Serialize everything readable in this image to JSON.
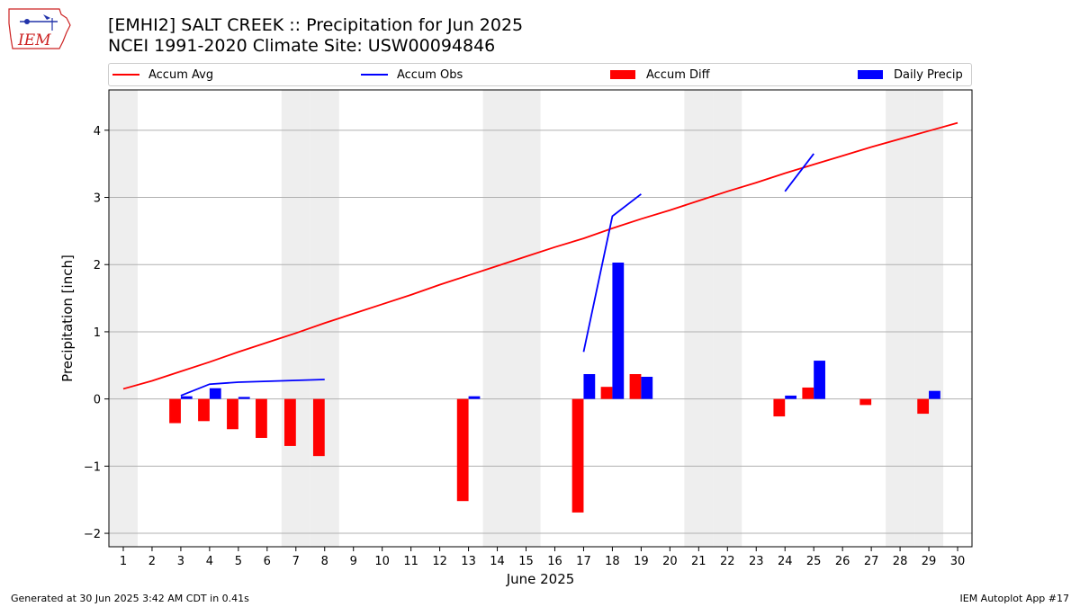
{
  "header": {
    "logo_text": "IEM",
    "title_line1": "[EMHI2] SALT CREEK :: Precipitation for Jun 2025",
    "title_line2": "NCEI 1991-2020 Climate Site: USW00094846"
  },
  "legend": {
    "items": [
      {
        "label": "Accum Avg",
        "kind": "line",
        "color": "#ff0000"
      },
      {
        "label": "Accum Obs",
        "kind": "line",
        "color": "#0000ff"
      },
      {
        "label": "Accum Diff",
        "kind": "patch",
        "color": "#ff0000"
      },
      {
        "label": "Daily Precip",
        "kind": "patch",
        "color": "#0000ff"
      }
    ]
  },
  "footer": {
    "left": "Generated at 30 Jun 2025 3:42 AM CDT in 0.41s",
    "right": "IEM Autoplot App #17"
  },
  "chart_data": {
    "type": "bar",
    "xlabel": "June 2025",
    "ylabel": "Precipitation [inch]",
    "xlim": [
      0.5,
      30.5
    ],
    "ylim": [
      -2.2,
      4.6
    ],
    "yticks": [
      -2,
      -1,
      0,
      1,
      2,
      3,
      4
    ],
    "ytick_labels": [
      "−2",
      "−1",
      "0",
      "1",
      "2",
      "3",
      "4"
    ],
    "categories": [
      "1",
      "2",
      "3",
      "4",
      "5",
      "6",
      "7",
      "8",
      "9",
      "10",
      "11",
      "12",
      "13",
      "14",
      "15",
      "16",
      "17",
      "18",
      "19",
      "20",
      "21",
      "22",
      "23",
      "24",
      "25",
      "26",
      "27",
      "28",
      "29",
      "30"
    ],
    "weekend_days": [
      1,
      7,
      8,
      14,
      15,
      21,
      22,
      28,
      29
    ],
    "grid": "y",
    "colors": {
      "avg": "#ff0000",
      "obs": "#0000ff",
      "diff": "#ff0000",
      "daily": "#0000ff",
      "weekend_shade": "#eeeeee",
      "grid": "#b0b0b0"
    },
    "series": [
      {
        "name": "Accum Avg",
        "type": "line",
        "x": [
          1,
          2,
          3,
          4,
          5,
          6,
          7,
          8,
          9,
          10,
          11,
          12,
          13,
          14,
          15,
          16,
          17,
          18,
          19,
          20,
          21,
          22,
          23,
          24,
          25,
          26,
          27,
          28,
          29,
          30
        ],
        "values": [
          0.15,
          0.27,
          0.41,
          0.55,
          0.7,
          0.84,
          0.98,
          1.13,
          1.27,
          1.41,
          1.55,
          1.7,
          1.84,
          1.98,
          2.12,
          2.26,
          2.39,
          2.54,
          2.68,
          2.81,
          2.95,
          3.09,
          3.22,
          3.36,
          3.49,
          3.62,
          3.75,
          3.87,
          3.99,
          4.11
        ]
      },
      {
        "name": "Accum Obs",
        "type": "line",
        "segments": [
          {
            "x": [
              3,
              4,
              5,
              8
            ],
            "values": [
              0.05,
              0.22,
              0.25,
              0.29
            ]
          },
          {
            "x": [
              17,
              18,
              19
            ],
            "values": [
              0.7,
              2.72,
              3.05
            ]
          },
          {
            "x": [
              24,
              25
            ],
            "values": [
              3.09,
              3.65
            ]
          }
        ]
      },
      {
        "name": "Accum Diff",
        "type": "bar",
        "x": [
          3,
          4,
          5,
          6,
          7,
          8,
          13,
          17,
          18,
          19,
          24,
          25,
          27,
          29
        ],
        "values": [
          -0.36,
          -0.33,
          -0.45,
          -0.58,
          -0.7,
          -0.85,
          -1.52,
          -1.69,
          0.18,
          0.37,
          -0.26,
          0.17,
          -0.09,
          -0.22
        ]
      },
      {
        "name": "Daily Precip",
        "type": "bar",
        "x": [
          3,
          4,
          5,
          13,
          17,
          18,
          19,
          24,
          25,
          29
        ],
        "values": [
          0.04,
          0.16,
          0.03,
          0.04,
          0.37,
          2.03,
          0.33,
          0.05,
          0.57,
          0.12
        ]
      }
    ]
  }
}
